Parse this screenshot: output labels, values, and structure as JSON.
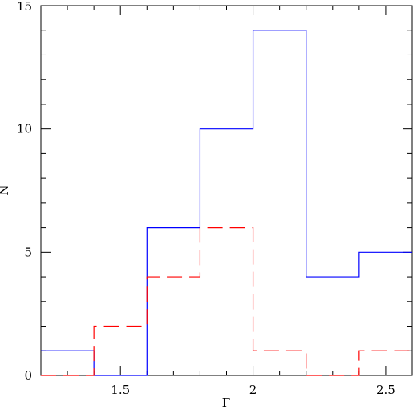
{
  "chart_data": {
    "type": "step-histogram",
    "xlabel": "Γ",
    "ylabel": "N",
    "xlim": [
      1.2,
      2.6
    ],
    "ylim": [
      0,
      15
    ],
    "bin_edges": [
      1.2,
      1.4,
      1.6,
      1.8,
      2.0,
      2.2,
      2.4,
      2.6
    ],
    "x_major_ticks": [
      1.5,
      2,
      2.5
    ],
    "x_tick_labels": [
      "1.5",
      "2",
      "2.5"
    ],
    "y_major_ticks": [
      0,
      5,
      10,
      15
    ],
    "y_tick_labels": [
      "0",
      "5",
      "10",
      "15"
    ],
    "grid": false,
    "legend": "none",
    "series": [
      {
        "color": "#0000ff",
        "line_style": "solid",
        "values": [
          1,
          0,
          6,
          10,
          14,
          4,
          5
        ]
      },
      {
        "color": "#ff0000",
        "line_style": "dashed",
        "values": [
          0,
          2,
          4,
          6,
          1,
          0,
          1
        ]
      }
    ]
  }
}
